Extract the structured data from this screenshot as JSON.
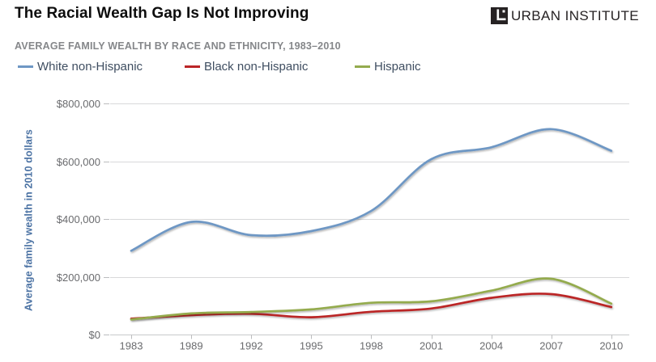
{
  "page": {
    "title": "The Racial Wealth Gap Is Not Improving",
    "logo": {
      "icon": "urban-institute-mark",
      "text": "URBAN INSTITUTE"
    }
  },
  "chart_data": {
    "type": "line",
    "title": "AVERAGE FAMILY WEALTH BY RACE AND ETHNICITY, 1983–2010",
    "xlabel": "",
    "ylabel": "Average family wealth in 2010 dollars",
    "categories": [
      "1983",
      "1989",
      "1992",
      "1995",
      "1998",
      "2001",
      "2004",
      "2007",
      "2010"
    ],
    "series": [
      {
        "name": "White non-Hispanic",
        "color": "#6e97c4",
        "values": [
          290000,
          390000,
          344000,
          358000,
          428000,
          607000,
          648000,
          711000,
          636000
        ]
      },
      {
        "name": "Black non-Hispanic",
        "color": "#bb2527",
        "values": [
          55000,
          67000,
          72000,
          60000,
          79000,
          90000,
          127000,
          140000,
          95000
        ]
      },
      {
        "name": "Hispanic",
        "color": "#94ab4e",
        "values": [
          52000,
          73000,
          78000,
          87000,
          110000,
          115000,
          152000,
          193000,
          107000
        ]
      }
    ],
    "ylim": [
      0,
      800000
    ],
    "ytick_values": [
      0,
      200000,
      400000,
      600000,
      800000
    ],
    "ytick_labels": [
      "$0",
      "$200,000",
      "$400,000",
      "$600,000",
      "$800,000"
    ],
    "grid": true,
    "legend_position": "top-left",
    "notes": "x categories evenly spaced"
  },
  "colors": {
    "title_text": "#0d0d0d",
    "subtitle_text": "#85878a",
    "legend_text": "#3f4e61",
    "axis_title_text": "#4c73a4",
    "tick_text": "#6a6b6e",
    "gridline": "#d8d9da",
    "baseline": "#c8c9cb",
    "tick_mark": "#bbbcbe"
  }
}
